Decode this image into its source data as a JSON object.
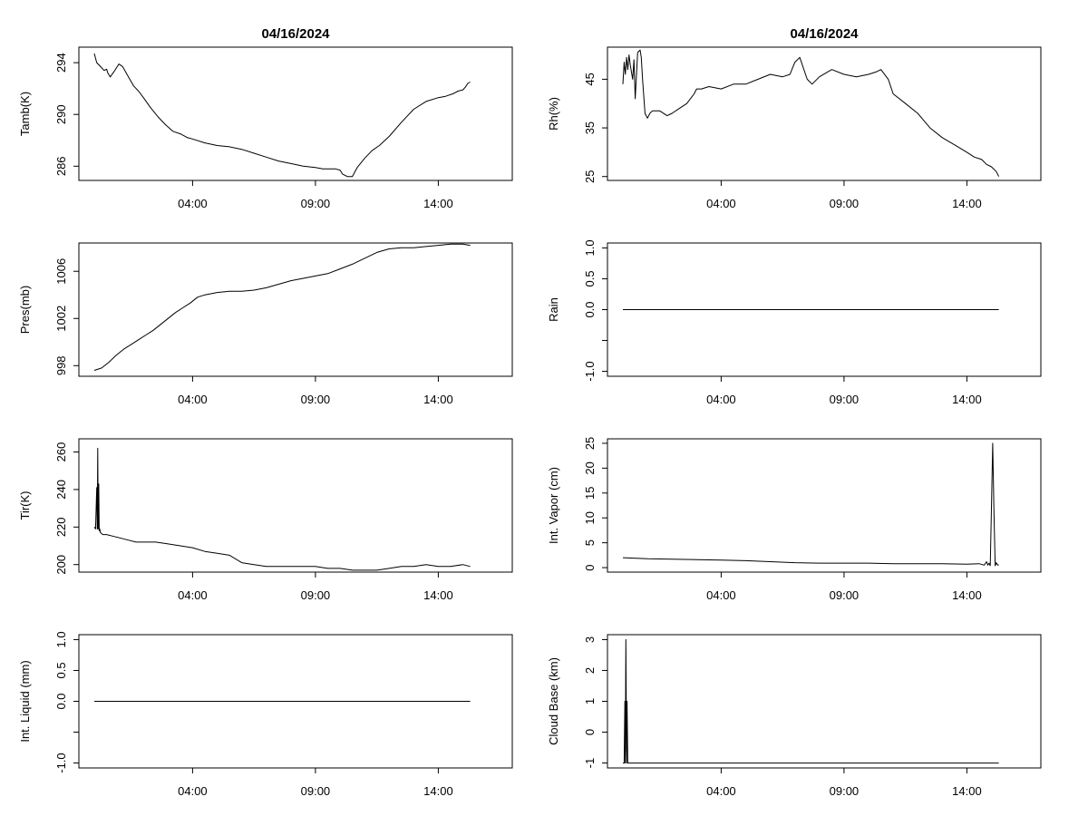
{
  "chart_data": [
    {
      "type": "line",
      "title": "04/16/2024",
      "ylabel": "Tamb(K)",
      "xlim": [
        0,
        16.5
      ],
      "ylim": [
        284.9,
        295.2
      ],
      "xticks": [
        4,
        9,
        14
      ],
      "xtick_labels": [
        "04:00",
        "09:00",
        "14:00"
      ],
      "yticks": [
        286,
        290,
        294
      ],
      "ytick_labels": [
        "286",
        "290",
        "294"
      ],
      "grid": false,
      "series": [
        {
          "x": [
            0,
            0.1,
            0.25,
            0.4,
            0.5,
            0.55,
            0.65,
            0.8,
            1.0,
            1.15,
            1.3,
            1.45,
            1.6,
            1.8,
            2.0,
            2.3,
            2.6,
            2.9,
            3.2,
            3.5,
            3.8,
            4.0,
            4.5,
            5.0,
            5.5,
            6.0,
            6.5,
            7.0,
            7.5,
            8.0,
            8.5,
            9.0,
            9.3,
            9.6,
            9.8,
            10.0,
            10.1,
            10.3,
            10.5,
            10.7,
            11.0,
            11.3,
            11.6,
            12.0,
            12.5,
            13.0,
            13.5,
            14.0,
            14.3,
            14.6,
            14.8,
            15.0,
            15.1,
            15.2,
            15.3
          ],
          "y": [
            294.7,
            294.0,
            293.7,
            293.4,
            293.5,
            293.2,
            292.9,
            293.3,
            293.9,
            293.7,
            293.2,
            292.7,
            292.2,
            291.8,
            291.3,
            290.5,
            289.8,
            289.2,
            288.7,
            288.5,
            288.2,
            288.1,
            287.8,
            287.6,
            287.5,
            287.3,
            287.0,
            286.7,
            286.4,
            286.2,
            286.0,
            285.9,
            285.8,
            285.8,
            285.8,
            285.7,
            285.4,
            285.2,
            285.2,
            285.9,
            286.6,
            287.2,
            287.6,
            288.3,
            289.4,
            290.4,
            291.0,
            291.3,
            291.4,
            291.6,
            291.8,
            291.9,
            292.1,
            292.4,
            292.5
          ]
        }
      ]
    },
    {
      "type": "line",
      "title": "04/16/2024",
      "ylabel": "Rh(%)",
      "xlim": [
        0,
        16.5
      ],
      "ylim": [
        24.2,
        51.6
      ],
      "xticks": [
        4,
        9,
        14
      ],
      "xtick_labels": [
        "04:00",
        "09:00",
        "14:00"
      ],
      "yticks": [
        25,
        35,
        45
      ],
      "ytick_labels": [
        "25",
        "35",
        "45"
      ],
      "grid": false,
      "series": [
        {
          "x": [
            0,
            0.05,
            0.1,
            0.15,
            0.2,
            0.25,
            0.3,
            0.4,
            0.45,
            0.5,
            0.6,
            0.7,
            0.75,
            0.8,
            0.9,
            1.0,
            1.1,
            1.2,
            1.5,
            1.8,
            2.0,
            2.3,
            2.6,
            2.9,
            3.0,
            3.2,
            3.5,
            4.0,
            4.5,
            5.0,
            5.5,
            6.0,
            6.5,
            6.8,
            7.0,
            7.2,
            7.5,
            7.7,
            8.0,
            8.5,
            9.0,
            9.5,
            10.0,
            10.3,
            10.5,
            10.8,
            11.0,
            11.5,
            12.0,
            12.5,
            13.0,
            13.5,
            14.0,
            14.3,
            14.6,
            14.8,
            15.0,
            15.2,
            15.3
          ],
          "y": [
            44.0,
            48.5,
            46.0,
            49.5,
            47.0,
            50.0,
            48.0,
            45.0,
            49.0,
            41.0,
            50.5,
            51.0,
            49.5,
            45.0,
            38.0,
            37.0,
            38.0,
            38.5,
            38.5,
            37.5,
            38.0,
            39.0,
            40.0,
            42.0,
            43.0,
            43.0,
            43.5,
            43.0,
            44.0,
            44.0,
            45.0,
            46.0,
            45.5,
            46.0,
            48.5,
            49.5,
            45.0,
            44.0,
            45.5,
            47.0,
            46.0,
            45.5,
            46.0,
            46.5,
            47.0,
            45.0,
            42.0,
            40.0,
            38.0,
            35.0,
            33.0,
            31.5,
            30.0,
            29.0,
            28.5,
            27.5,
            27.0,
            26.0,
            25.0
          ]
        }
      ]
    },
    {
      "type": "line",
      "title": "",
      "ylabel": "Pres(mb)",
      "xlim": [
        0,
        16.5
      ],
      "ylim": [
        997.1,
        1008.4
      ],
      "xticks": [
        4,
        9,
        14
      ],
      "xtick_labels": [
        "04:00",
        "09:00",
        "14:00"
      ],
      "yticks": [
        998,
        1002,
        1006
      ],
      "ytick_labels": [
        "998",
        "1002",
        "1006"
      ],
      "grid": false,
      "series": [
        {
          "x": [
            0,
            0.3,
            0.6,
            0.9,
            1.2,
            1.5,
            1.8,
            2.1,
            2.4,
            2.7,
            3.0,
            3.3,
            3.6,
            3.9,
            4.2,
            4.5,
            5.0,
            5.5,
            6.0,
            6.5,
            7.0,
            7.5,
            8.0,
            8.5,
            9.0,
            9.5,
            10.0,
            10.5,
            11.0,
            11.5,
            12.0,
            12.5,
            13.0,
            13.5,
            14.0,
            14.5,
            15.0,
            15.3
          ],
          "y": [
            997.6,
            997.8,
            998.3,
            998.9,
            999.4,
            999.8,
            1000.2,
            1000.6,
            1001.0,
            1001.5,
            1002.0,
            1002.5,
            1002.9,
            1003.3,
            1003.8,
            1004.0,
            1004.2,
            1004.3,
            1004.3,
            1004.4,
            1004.6,
            1004.9,
            1005.2,
            1005.4,
            1005.6,
            1005.8,
            1006.2,
            1006.6,
            1007.1,
            1007.6,
            1007.9,
            1008.0,
            1008.0,
            1008.1,
            1008.2,
            1008.3,
            1008.3,
            1008.2
          ]
        }
      ]
    },
    {
      "type": "line",
      "title": "",
      "ylabel": "Rain",
      "xlim": [
        0,
        16.5
      ],
      "ylim": [
        -1.08,
        1.08
      ],
      "xticks": [
        4,
        9,
        14
      ],
      "xtick_labels": [
        "04:00",
        "09:00",
        "14:00"
      ],
      "yticks": [
        -1.0,
        -0.5,
        0.0,
        0.5,
        1.0
      ],
      "ytick_labels": [
        "-1.0",
        "",
        "0.0",
        "0.5",
        "1.0"
      ],
      "grid": false,
      "series": [
        {
          "x": [
            0,
            15.3
          ],
          "y": [
            0,
            0
          ]
        }
      ]
    },
    {
      "type": "line",
      "title": "",
      "ylabel": "Tir(K)",
      "xlim": [
        0,
        16.5
      ],
      "ylim": [
        196.0,
        267.0
      ],
      "xticks": [
        4,
        9,
        14
      ],
      "xtick_labels": [
        "04:00",
        "09:00",
        "14:00"
      ],
      "yticks": [
        200,
        220,
        240,
        260
      ],
      "ytick_labels": [
        "200",
        "220",
        "240",
        "260"
      ],
      "grid": false,
      "series": [
        {
          "x": [
            0,
            0.05,
            0.1,
            0.12,
            0.14,
            0.16,
            0.18,
            0.2,
            0.22,
            0.25,
            0.35,
            0.5,
            0.8,
            1.1,
            1.4,
            1.7,
            2.0,
            2.5,
            3.0,
            3.5,
            4.0,
            4.5,
            5.0,
            5.5,
            6.0,
            6.5,
            7.0,
            7.5,
            8.0,
            8.5,
            9.0,
            9.5,
            10.0,
            10.5,
            11.0,
            11.5,
            12.0,
            12.5,
            13.0,
            13.5,
            14.0,
            14.5,
            15.0,
            15.3
          ],
          "y": [
            220,
            219,
            241,
            219,
            262,
            219,
            243,
            218,
            219,
            217,
            216,
            216,
            215,
            214,
            213,
            212,
            212,
            212,
            211,
            210,
            209,
            207,
            206,
            205,
            201,
            200,
            199,
            199,
            199,
            199,
            199,
            198,
            198,
            197,
            197,
            197,
            198,
            199,
            199,
            200,
            199,
            199,
            200,
            199
          ]
        }
      ]
    },
    {
      "type": "line",
      "title": "",
      "ylabel": "Int. Vapor (cm)",
      "xlim": [
        0,
        16.5
      ],
      "ylim": [
        -0.9,
        25.9
      ],
      "xticks": [
        4,
        9,
        14
      ],
      "xtick_labels": [
        "04:00",
        "09:00",
        "14:00"
      ],
      "yticks": [
        0,
        5,
        10,
        15,
        20,
        25
      ],
      "ytick_labels": [
        "0",
        "5",
        "10",
        "15",
        "20",
        "25"
      ],
      "grid": false,
      "series": [
        {
          "x": [
            0,
            1,
            2,
            3,
            4,
            5,
            6,
            7,
            8,
            9,
            10,
            11,
            12,
            13,
            14,
            14.5,
            14.7,
            14.8,
            14.85,
            14.9,
            14.95,
            15.0,
            15.05,
            15.1,
            15.15,
            15.2,
            15.25,
            15.3
          ],
          "y": [
            2.0,
            1.8,
            1.7,
            1.6,
            1.5,
            1.4,
            1.2,
            1.0,
            0.9,
            0.9,
            0.9,
            0.8,
            0.8,
            0.8,
            0.7,
            0.8,
            0.5,
            1.2,
            0.5,
            0.9,
            0.4,
            12.0,
            25.0,
            12.0,
            0.4,
            1.0,
            0.5,
            0.6
          ]
        }
      ]
    },
    {
      "type": "line",
      "title": "",
      "ylabel": "Int. Liquid (mm)",
      "xlim": [
        0,
        16.5
      ],
      "ylim": [
        -1.08,
        1.08
      ],
      "xticks": [
        4,
        9,
        14
      ],
      "xtick_labels": [
        "04:00",
        "09:00",
        "14:00"
      ],
      "yticks": [
        -1.0,
        -0.5,
        0.0,
        0.5,
        1.0
      ],
      "ytick_labels": [
        "-1.0",
        "",
        "0.0",
        "0.5",
        "1.0"
      ],
      "grid": false,
      "series": [
        {
          "x": [
            0,
            15.3
          ],
          "y": [
            0,
            0
          ]
        }
      ]
    },
    {
      "type": "line",
      "title": "",
      "ylabel": "Cloud Base (km)",
      "xlim": [
        0,
        16.5
      ],
      "ylim": [
        -1.16,
        3.16
      ],
      "xticks": [
        4,
        9,
        14
      ],
      "xtick_labels": [
        "04:00",
        "09:00",
        "14:00"
      ],
      "yticks": [
        -1,
        0,
        1,
        2,
        3
      ],
      "ytick_labels": [
        "-1",
        "0",
        "1",
        "2",
        "3"
      ],
      "grid": false,
      "series": [
        {
          "x": [
            0,
            0.05,
            0.08,
            0.1,
            0.12,
            0.15,
            0.17,
            0.2,
            15.3
          ],
          "y": [
            -1,
            -1,
            1,
            -1,
            3,
            -1,
            1,
            -1,
            -1
          ]
        }
      ]
    }
  ]
}
